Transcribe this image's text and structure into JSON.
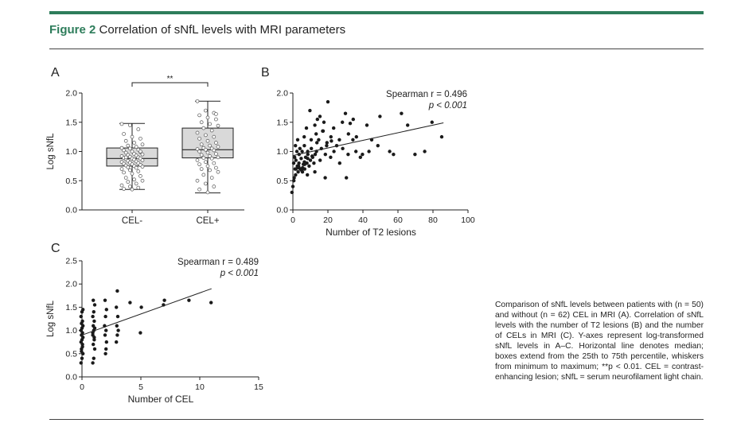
{
  "figure": {
    "label": "Figure 2",
    "title": "Correlation of sNfL levels with MRI parameters"
  },
  "panels": {
    "a": "A",
    "b": "B",
    "c": "C"
  },
  "caption": "Comparison of sNfL levels between patients with (n = 50) and without (n = 62) CEL in MRI (A). Correlation of sNfL levels with the number of T2 lesions (B) and the number of CELs in MRI (C). Y-axes represent log-transformed sNfL levels in A–C. Horizontal line denotes median; boxes extend from the 25th to 75th percentile, whiskers from minimum to maximum; **p < 0.01. CEL = contrast-enhancing lesion; sNfL = serum neurofilament light chain.",
  "colors": {
    "accent": "#2e7d5b",
    "box_fill": "#d9d9d9",
    "point": "#1a1a1a"
  },
  "chart_data": [
    {
      "type": "box",
      "panel": "A",
      "ylabel": "Log sNfL",
      "ylim": [
        0.0,
        2.0
      ],
      "yticks": [
        "0.0",
        "0.5",
        "1.0",
        "1.5",
        "2.0"
      ],
      "categories": [
        "CEL-",
        "CEL+"
      ],
      "significance": "**",
      "boxes": [
        {
          "min": 0.35,
          "q1": 0.75,
          "median": 0.88,
          "q3": 1.06,
          "max": 1.48
        },
        {
          "min": 0.29,
          "q1": 0.89,
          "median": 1.03,
          "q3": 1.4,
          "max": 1.86
        }
      ],
      "points": [
        [
          1.47,
          1.45,
          1.38,
          1.3,
          1.25,
          1.22,
          1.18,
          1.15,
          1.12,
          1.1,
          1.08,
          1.06,
          1.05,
          1.03,
          1.02,
          1.0,
          0.99,
          0.98,
          0.96,
          0.95,
          0.94,
          0.93,
          0.92,
          0.91,
          0.9,
          0.89,
          0.88,
          0.88,
          0.87,
          0.86,
          0.85,
          0.84,
          0.83,
          0.82,
          0.81,
          0.8,
          0.79,
          0.78,
          0.77,
          0.76,
          0.75,
          0.74,
          0.73,
          0.72,
          0.7,
          0.68,
          0.66,
          0.64,
          0.62,
          0.58,
          0.55,
          0.52,
          0.5,
          0.48,
          0.45,
          0.42,
          0.4,
          0.38,
          0.36,
          0.35,
          1.0,
          0.9
        ],
        [
          1.86,
          1.7,
          1.66,
          1.62,
          1.58,
          1.55,
          1.5,
          1.47,
          1.44,
          1.4,
          1.36,
          1.32,
          1.28,
          1.25,
          1.22,
          1.18,
          1.15,
          1.12,
          1.1,
          1.08,
          1.06,
          1.05,
          1.04,
          1.03,
          1.02,
          1.0,
          0.98,
          0.96,
          0.94,
          0.92,
          0.9,
          0.89,
          0.88,
          0.85,
          0.82,
          0.8,
          0.78,
          0.75,
          0.72,
          0.7,
          0.68,
          0.65,
          0.6,
          0.55,
          0.5,
          0.45,
          0.4,
          0.35,
          0.3,
          1.64
        ]
      ]
    },
    {
      "type": "scatter",
      "panel": "B",
      "xlabel": "Number of T2 lesions",
      "ylabel": "",
      "xlim": [
        0,
        100
      ],
      "ylim": [
        0.0,
        2.0
      ],
      "xticks": [
        "0",
        "20",
        "40",
        "60",
        "80",
        "100"
      ],
      "yticks": [
        "0.0",
        "0.5",
        "1.0",
        "1.5",
        "2.0"
      ],
      "annotation_r": "Spearman r = 0.496",
      "annotation_p": "p < 0.001",
      "fit_line": {
        "x": [
          0,
          86
        ],
        "y": [
          0.93,
          1.49
        ]
      },
      "x": [
        0,
        0,
        0,
        1,
        1,
        1,
        1,
        2,
        2,
        2,
        2,
        3,
        3,
        3,
        4,
        4,
        4,
        5,
        5,
        5,
        6,
        6,
        6,
        7,
        7,
        7,
        8,
        8,
        8,
        9,
        9,
        10,
        10,
        10,
        11,
        11,
        12,
        12,
        13,
        13,
        14,
        14,
        15,
        15,
        16,
        16,
        17,
        18,
        18,
        19,
        20,
        20,
        21,
        22,
        23,
        24,
        25,
        26,
        27,
        28,
        29,
        30,
        31,
        32,
        34,
        35,
        36,
        38,
        40,
        42,
        44,
        45,
        48,
        50,
        55,
        58,
        62,
        65,
        70,
        75,
        80,
        85,
        1,
        2,
        3,
        4,
        5,
        6,
        7,
        8,
        9,
        11,
        12,
        14,
        17,
        19,
        22,
        30,
        33,
        36
      ],
      "y": [
        0.3,
        0.4,
        0.5,
        0.55,
        0.7,
        0.8,
        0.9,
        0.75,
        0.85,
        1.0,
        1.1,
        0.65,
        0.95,
        1.2,
        0.7,
        0.8,
        1.05,
        0.72,
        0.88,
        1.0,
        0.65,
        0.78,
        1.1,
        0.7,
        0.9,
        1.25,
        0.8,
        0.95,
        1.4,
        0.75,
        1.0,
        0.85,
        1.05,
        1.7,
        0.9,
        1.2,
        0.8,
        1.45,
        0.95,
        1.3,
        1.0,
        1.55,
        0.85,
        1.2,
        1.05,
        1.6,
        1.35,
        0.95,
        1.5,
        1.1,
        1.15,
        1.85,
        0.9,
        1.25,
        1.4,
        1.0,
        1.1,
        1.2,
        0.8,
        1.5,
        1.05,
        1.65,
        0.95,
        1.3,
        1.2,
        1.55,
        1.0,
        0.9,
        0.95,
        1.45,
        1.0,
        1.2,
        1.1,
        1.6,
        1.0,
        0.95,
        1.65,
        1.45,
        0.95,
        1.0,
        1.5,
        1.25,
        0.6,
        0.7,
        0.75,
        0.72,
        0.68,
        0.82,
        0.78,
        0.6,
        0.88,
        0.92,
        0.65,
        1.15,
        1.35,
        0.55,
        1.18,
        0.55,
        1.48,
        1.25
      ]
    },
    {
      "type": "scatter",
      "panel": "C",
      "xlabel": "Number of CEL",
      "ylabel": "Log sNfL",
      "xlim": [
        0,
        15
      ],
      "ylim": [
        0.0,
        2.5
      ],
      "xticks": [
        "0",
        "5",
        "10",
        "15"
      ],
      "yticks": [
        "0.0",
        "0.5",
        "1.0",
        "1.5",
        "2.0",
        "2.5"
      ],
      "annotation_r": "Spearman r = 0.489",
      "annotation_p": "p < 0.001",
      "fit_line": {
        "x": [
          0,
          11
        ],
        "y": [
          0.9,
          1.9
        ]
      },
      "x": [
        0,
        0,
        0,
        0,
        0,
        0,
        0,
        0,
        0,
        0,
        0,
        0,
        0,
        0,
        0,
        0,
        0,
        0,
        0,
        0,
        1,
        1,
        1,
        1,
        1,
        1,
        1,
        1,
        1,
        1,
        1,
        1,
        1,
        1,
        1,
        1,
        2,
        2,
        2,
        2,
        2,
        2,
        2,
        2,
        2,
        3,
        3,
        3,
        3,
        3,
        3,
        3,
        4,
        5,
        5,
        7,
        7,
        9,
        11
      ],
      "y": [
        0.3,
        0.4,
        0.5,
        0.6,
        0.7,
        0.75,
        0.8,
        0.85,
        0.9,
        0.95,
        1.0,
        1.05,
        1.1,
        1.15,
        1.2,
        1.3,
        1.4,
        1.45,
        0.55,
        0.65,
        0.3,
        0.4,
        0.6,
        0.7,
        0.8,
        0.9,
        1.0,
        1.05,
        1.1,
        1.2,
        1.3,
        1.4,
        1.55,
        1.65,
        0.85,
        0.95,
        0.5,
        0.75,
        0.9,
        1.0,
        1.1,
        1.3,
        1.45,
        1.65,
        0.6,
        0.75,
        0.9,
        1.0,
        1.1,
        1.3,
        1.5,
        1.85,
        1.6,
        0.95,
        1.5,
        1.55,
        1.65,
        1.65,
        1.6
      ]
    }
  ]
}
